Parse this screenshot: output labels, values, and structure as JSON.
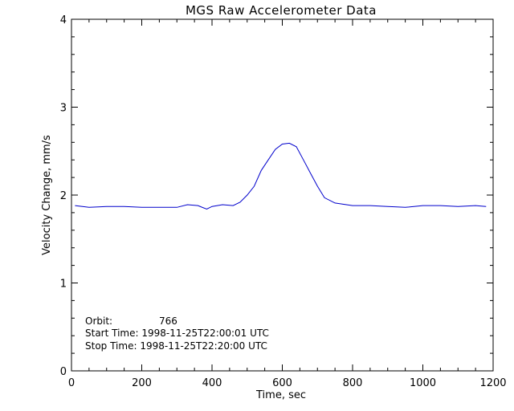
{
  "chart_data": {
    "type": "line",
    "title": "MGS Raw Accelerometer Data",
    "xlabel": "Time, sec",
    "ylabel": "Velocity Change, mm/s",
    "xlim": [
      0,
      1200
    ],
    "ylim": [
      0,
      4
    ],
    "x_ticks": [
      0,
      200,
      400,
      600,
      800,
      1000,
      1200
    ],
    "y_ticks": [
      0,
      1,
      2,
      3,
      4
    ],
    "grid": false,
    "series": [
      {
        "color": "#0000cc",
        "x": [
          10,
          50,
          100,
          150,
          200,
          250,
          300,
          330,
          360,
          385,
          400,
          430,
          460,
          480,
          500,
          520,
          540,
          560,
          580,
          600,
          620,
          640,
          660,
          680,
          700,
          720,
          750,
          800,
          850,
          900,
          950,
          1000,
          1050,
          1100,
          1150,
          1180
        ],
        "y": [
          1.88,
          1.86,
          1.87,
          1.87,
          1.86,
          1.86,
          1.86,
          1.89,
          1.88,
          1.84,
          1.87,
          1.89,
          1.88,
          1.92,
          2.0,
          2.1,
          2.28,
          2.4,
          2.52,
          2.58,
          2.59,
          2.55,
          2.4,
          2.25,
          2.1,
          1.97,
          1.91,
          1.88,
          1.88,
          1.87,
          1.86,
          1.88,
          1.88,
          1.87,
          1.88,
          1.87
        ]
      }
    ]
  },
  "annotations": {
    "orbit_label": "Orbit:",
    "orbit_value": "766",
    "start_time": "Start Time: 1998-11-25T22:00:01 UTC",
    "stop_time": "Stop Time: 1998-11-25T22:20:00 UTC"
  }
}
